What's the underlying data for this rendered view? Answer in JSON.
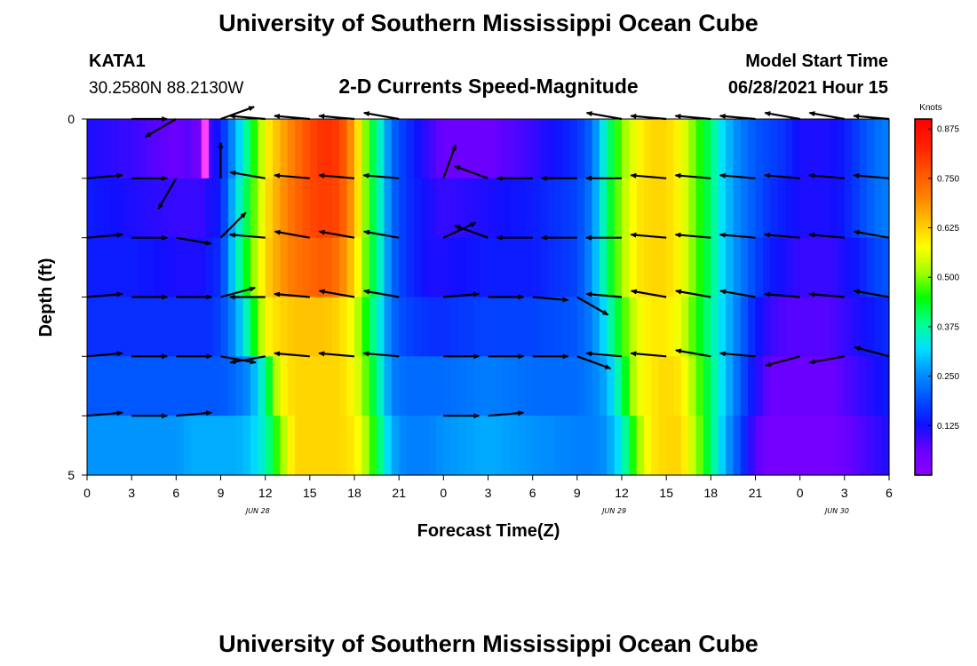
{
  "header": {
    "title": "University of Southern Mississippi Ocean Cube",
    "station_id": "KATA1",
    "station_coords": "30.2580N  88.2130W",
    "subtitle": "2-D Currents Speed-Magnitude",
    "model_start_label": "Model Start Time",
    "model_start_value": "06/28/2021 Hour 15"
  },
  "footer": {
    "title": "University of Southern Mississippi Ocean Cube"
  },
  "chart_data": {
    "type": "heatmap",
    "title": "2-D Currents Speed-Magnitude",
    "xlabel": "Forecast Time(Z)",
    "ylabel": "Depth (ft)",
    "ylim": [
      5,
      0
    ],
    "y_tick_labels": [
      "0",
      "5"
    ],
    "x_tick_labels": [
      "0",
      "3",
      "6",
      "9",
      "12",
      "15",
      "18",
      "21",
      "0",
      "3",
      "6",
      "9",
      "12",
      "15",
      "18",
      "21",
      "0",
      "3",
      "6"
    ],
    "day_labels": [
      {
        "text": "JUN 28",
        "x_hours": 11.5
      },
      {
        "text": "JUN 29",
        "x_hours": 35.5
      },
      {
        "text": "JUN 30",
        "x_hours": 50.5
      }
    ],
    "x_range_hours": [
      0,
      54
    ],
    "depth_layers_ft": [
      0,
      0.5,
      1.5,
      2.5,
      3.5,
      4.5
    ],
    "time_step_hours": 0.5,
    "speed_anchor_hours": [
      0,
      3,
      6,
      7,
      7.7,
      8.2,
      9,
      10,
      11,
      12,
      13,
      14,
      15,
      16,
      17,
      18,
      19,
      19.7,
      20.5,
      21.5,
      23,
      24,
      27,
      30,
      33,
      34,
      35,
      36,
      37,
      38,
      39,
      40,
      41,
      42,
      43,
      44,
      45,
      46,
      47,
      48,
      50,
      51,
      52,
      53,
      54
    ],
    "speed_knots": [
      [
        0.12,
        0.1,
        0.06,
        0.08,
        0.02,
        0.1,
        0.14,
        0.28,
        0.42,
        0.58,
        0.66,
        0.72,
        0.78,
        0.82,
        0.8,
        0.66,
        0.45,
        0.36,
        0.22,
        0.16,
        0.1,
        0.06,
        0.06,
        0.1,
        0.16,
        0.22,
        0.38,
        0.5,
        0.58,
        0.62,
        0.62,
        0.58,
        0.48,
        0.4,
        0.3,
        0.24,
        0.2,
        0.18,
        0.16,
        0.12,
        0.12,
        0.14,
        0.18,
        0.22,
        0.24
      ],
      [
        0.14,
        0.12,
        0.1,
        0.1,
        0.1,
        0.12,
        0.14,
        0.32,
        0.45,
        0.6,
        0.68,
        0.74,
        0.78,
        0.8,
        0.78,
        0.66,
        0.45,
        0.36,
        0.22,
        0.16,
        0.12,
        0.1,
        0.12,
        0.14,
        0.18,
        0.24,
        0.4,
        0.52,
        0.6,
        0.62,
        0.62,
        0.58,
        0.48,
        0.4,
        0.3,
        0.24,
        0.2,
        0.16,
        0.14,
        0.12,
        0.12,
        0.14,
        0.18,
        0.22,
        0.24
      ],
      [
        0.14,
        0.14,
        0.12,
        0.12,
        0.12,
        0.14,
        0.16,
        0.34,
        0.48,
        0.62,
        0.68,
        0.72,
        0.74,
        0.76,
        0.72,
        0.62,
        0.45,
        0.36,
        0.22,
        0.16,
        0.12,
        0.12,
        0.14,
        0.14,
        0.18,
        0.26,
        0.4,
        0.52,
        0.6,
        0.62,
        0.62,
        0.58,
        0.48,
        0.4,
        0.3,
        0.24,
        0.18,
        0.14,
        0.12,
        0.1,
        0.1,
        0.12,
        0.14,
        0.18,
        0.2
      ],
      [
        0.16,
        0.16,
        0.16,
        0.16,
        0.16,
        0.16,
        0.18,
        0.26,
        0.4,
        0.58,
        0.62,
        0.64,
        0.64,
        0.64,
        0.62,
        0.56,
        0.42,
        0.34,
        0.22,
        0.18,
        0.16,
        0.16,
        0.18,
        0.18,
        0.2,
        0.24,
        0.34,
        0.46,
        0.56,
        0.6,
        0.6,
        0.56,
        0.46,
        0.38,
        0.3,
        0.22,
        0.14,
        0.1,
        0.08,
        0.08,
        0.08,
        0.1,
        0.12,
        0.14,
        0.16
      ],
      [
        0.2,
        0.2,
        0.2,
        0.2,
        0.2,
        0.2,
        0.2,
        0.22,
        0.26,
        0.38,
        0.58,
        0.62,
        0.62,
        0.62,
        0.62,
        0.58,
        0.46,
        0.36,
        0.24,
        0.22,
        0.22,
        0.22,
        0.24,
        0.22,
        0.22,
        0.24,
        0.28,
        0.4,
        0.56,
        0.6,
        0.62,
        0.6,
        0.5,
        0.4,
        0.3,
        0.2,
        0.12,
        0.06,
        0.06,
        0.06,
        0.06,
        0.08,
        0.1,
        0.12,
        0.14
      ],
      [
        0.26,
        0.26,
        0.26,
        0.28,
        0.28,
        0.28,
        0.28,
        0.28,
        0.3,
        0.36,
        0.5,
        0.62,
        0.62,
        0.62,
        0.62,
        0.6,
        0.5,
        0.4,
        0.28,
        0.24,
        0.24,
        0.26,
        0.28,
        0.26,
        0.24,
        0.24,
        0.26,
        0.34,
        0.5,
        0.6,
        0.62,
        0.62,
        0.52,
        0.4,
        0.28,
        0.18,
        0.08,
        0.04,
        0.04,
        0.04,
        0.04,
        0.06,
        0.08,
        0.1,
        0.12
      ]
    ],
    "arrow_columns_hours": [
      0,
      3,
      6,
      9,
      12,
      15,
      18,
      21,
      24,
      27,
      30,
      33,
      36,
      39,
      42,
      45,
      48,
      51,
      54
    ],
    "arrow_directions_deg": [
      [
        null,
        0,
        210,
        20,
        175,
        175,
        175,
        170,
        null,
        null,
        null,
        null,
        170,
        175,
        175,
        175,
        170,
        170,
        175
      ],
      [
        5,
        0,
        240,
        90,
        170,
        175,
        175,
        175,
        70,
        160,
        180,
        180,
        180,
        175,
        175,
        175,
        175,
        175,
        175
      ],
      [
        5,
        0,
        350,
        45,
        175,
        170,
        170,
        170,
        25,
        160,
        180,
        180,
        180,
        175,
        175,
        175,
        175,
        175,
        170
      ],
      [
        5,
        0,
        0,
        15,
        180,
        175,
        170,
        170,
        5,
        0,
        355,
        330,
        175,
        170,
        170,
        170,
        175,
        175,
        170
      ],
      [
        5,
        0,
        0,
        350,
        190,
        175,
        175,
        175,
        0,
        0,
        0,
        340,
        175,
        175,
        170,
        175,
        195,
        190,
        165
      ],
      [
        5,
        0,
        5,
        null,
        null,
        null,
        null,
        null,
        0,
        5,
        null,
        null,
        null,
        null,
        null,
        null,
        null,
        null,
        null
      ]
    ],
    "arrow_length_knots": [
      [
        null,
        0.2,
        0.2,
        0.2,
        0.2,
        0.2,
        0.2,
        0.2,
        null,
        null,
        null,
        null,
        0.2,
        0.2,
        0.2,
        0.2,
        0.2,
        0.2,
        0.2
      ],
      [
        0.2,
        0.2,
        0.2,
        0.2,
        0.2,
        0.2,
        0.2,
        0.2,
        0.2,
        0.2,
        0.2,
        0.2,
        0.2,
        0.2,
        0.2,
        0.2,
        0.2,
        0.2,
        0.2
      ],
      [
        0.2,
        0.2,
        0.2,
        0.2,
        0.2,
        0.2,
        0.2,
        0.2,
        0.2,
        0.2,
        0.2,
        0.2,
        0.2,
        0.2,
        0.2,
        0.2,
        0.2,
        0.2,
        0.2
      ],
      [
        0.2,
        0.2,
        0.2,
        0.2,
        0.2,
        0.2,
        0.2,
        0.2,
        0.2,
        0.2,
        0.2,
        0.2,
        0.2,
        0.2,
        0.2,
        0.2,
        0.2,
        0.2,
        0.2
      ],
      [
        0.2,
        0.2,
        0.2,
        0.2,
        0.2,
        0.2,
        0.2,
        0.2,
        0.2,
        0.2,
        0.2,
        0.2,
        0.2,
        0.2,
        0.2,
        0.2,
        0.2,
        0.2,
        0.2
      ],
      [
        0.2,
        0.2,
        0.2,
        null,
        null,
        null,
        null,
        null,
        0.2,
        0.2,
        null,
        null,
        null,
        null,
        null,
        null,
        null,
        null,
        null
      ]
    ],
    "colorbar": {
      "unit_label": "Knots",
      "vmin": 0.0,
      "vmax": 0.9,
      "tick_values": [
        0.125,
        0.25,
        0.375,
        0.5,
        0.625,
        0.75,
        0.875
      ],
      "tick_labels": [
        "0.125",
        "0.250",
        "0.375",
        "0.500",
        "0.625",
        "0.750",
        "0.875"
      ]
    },
    "colormap": [
      "#8b00ff",
      "#6a00ff",
      "#1010ff",
      "#0050ff",
      "#0090ff",
      "#00e0ff",
      "#00ff90",
      "#00ff00",
      "#a0ff00",
      "#ffff00",
      "#ffc000",
      "#ff8000",
      "#ff5000",
      "#ff2000",
      "#ff0000"
    ],
    "highlight_color": "#ff40ff"
  }
}
